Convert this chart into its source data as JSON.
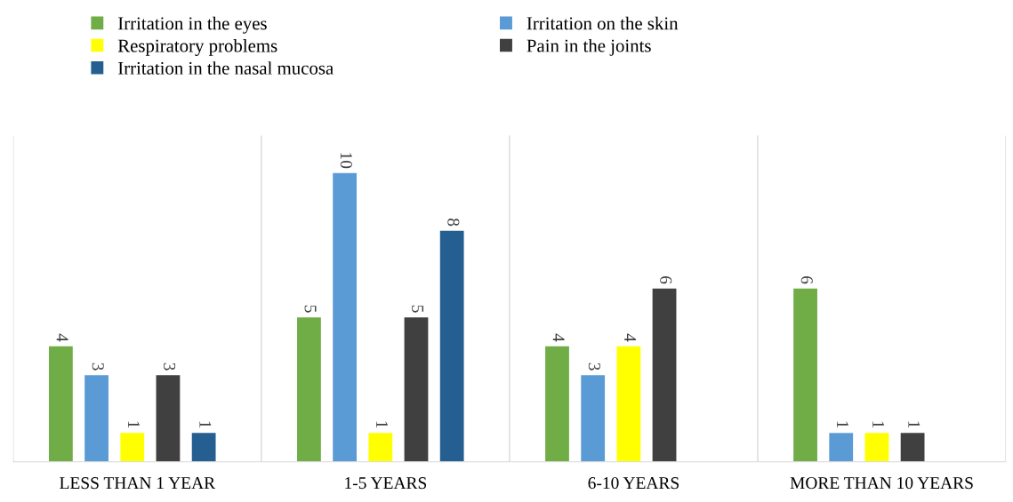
{
  "chart_data": {
    "type": "bar",
    "categories": [
      "LESS THAN 1 YEAR",
      "1-5 YEARS",
      "6-10 YEARS",
      "MORE THAN 10 YEARS"
    ],
    "series": [
      {
        "name": "Irritation in the eyes",
        "color": "#70ad47",
        "values": [
          4,
          5,
          4,
          6
        ]
      },
      {
        "name": "Irritation on the skin",
        "color": "#5b9bd5",
        "values": [
          3,
          10,
          3,
          1
        ]
      },
      {
        "name": "Respiratory problems",
        "color": "#ffff00",
        "values": [
          1,
          1,
          4,
          1
        ]
      },
      {
        "name": "Pain in the joints",
        "color": "#404040",
        "values": [
          3,
          5,
          6,
          1
        ]
      },
      {
        "name": "Irritation in the nasal mucosa",
        "color": "#255e91",
        "values": [
          1,
          8,
          null,
          null
        ]
      }
    ],
    "data_labels": true,
    "grid": "x",
    "legend": "top"
  }
}
